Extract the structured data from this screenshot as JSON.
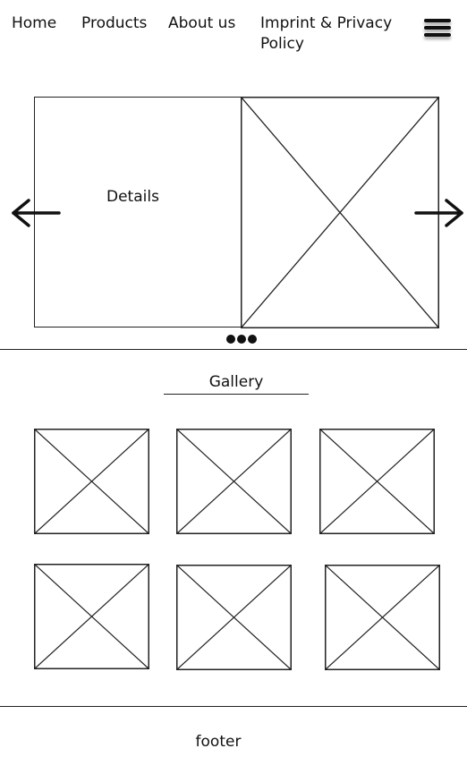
{
  "nav": {
    "items": [
      {
        "label": "Home"
      },
      {
        "label": "Products"
      },
      {
        "label": "About us"
      },
      {
        "label": "Imprint & Privacy Policy"
      }
    ],
    "menu_icon": "hamburger-menu-icon"
  },
  "carousel": {
    "details_label": "Details",
    "prev_icon": "arrow-left-icon",
    "next_icon": "arrow-right-icon",
    "pagination_icon": "ellipsis-dots-icon"
  },
  "gallery": {
    "title": "Gallery"
  },
  "footer": {
    "label": "footer"
  }
}
